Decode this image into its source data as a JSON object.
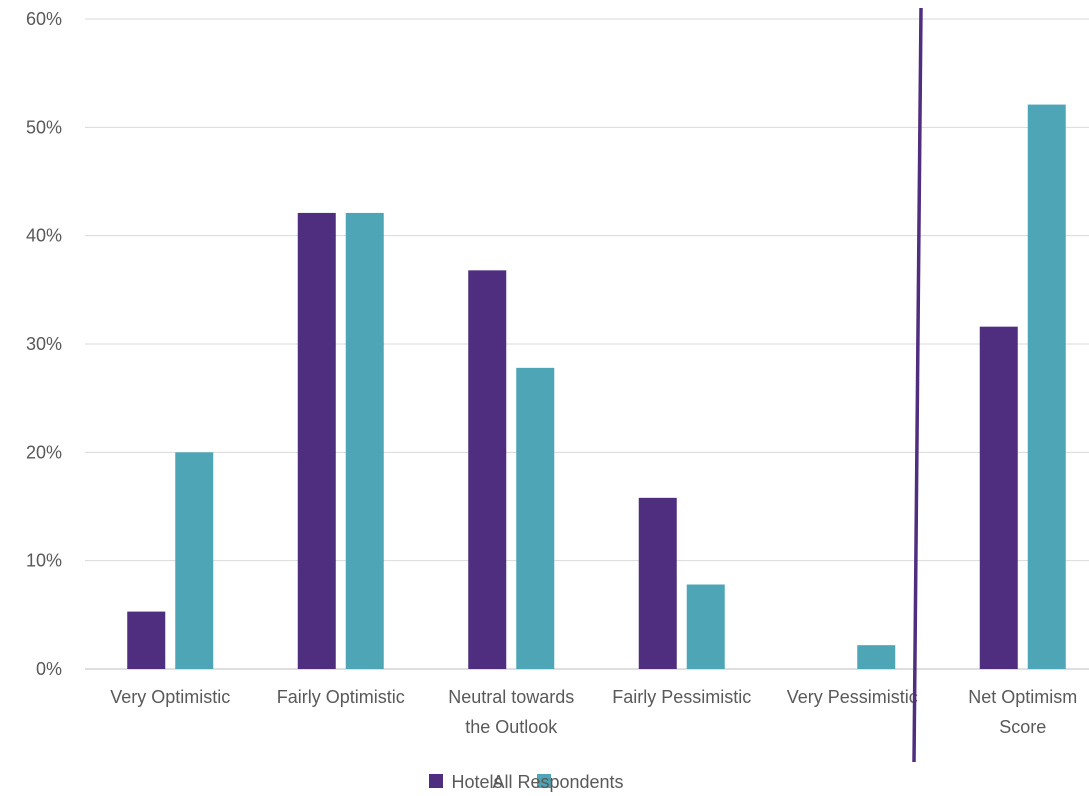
{
  "chart_data": {
    "type": "bar",
    "title": "",
    "xlabel": "",
    "ylabel": "",
    "categories": [
      [
        "Very Optimistic"
      ],
      [
        "Fairly Optimistic"
      ],
      [
        "Neutral towards",
        "the Outlook"
      ],
      [
        "Fairly Pessimistic"
      ],
      [
        "Very Pessimistic"
      ],
      [
        "Net Optimism",
        "Score"
      ]
    ],
    "series": [
      {
        "name": "Hotels",
        "color": "#4f2d7f",
        "values": [
          5.3,
          42.1,
          36.8,
          15.8,
          0,
          31.6
        ]
      },
      {
        "name": "All Respondents",
        "color": "#4ea5b5",
        "values": [
          20.0,
          42.1,
          27.8,
          7.8,
          2.2,
          52.1
        ]
      }
    ],
    "ylim": [
      0,
      60
    ],
    "yticks": [
      "0%",
      "10%",
      "20%",
      "30%",
      "40%",
      "50%",
      "60%"
    ],
    "grid": true,
    "legend_position": "bottom",
    "annotations": [
      {
        "type": "divider-line",
        "between_categories": [
          "Very Pessimistic",
          "Net Optimism Score"
        ],
        "color": "#4f2d7f"
      }
    ]
  }
}
